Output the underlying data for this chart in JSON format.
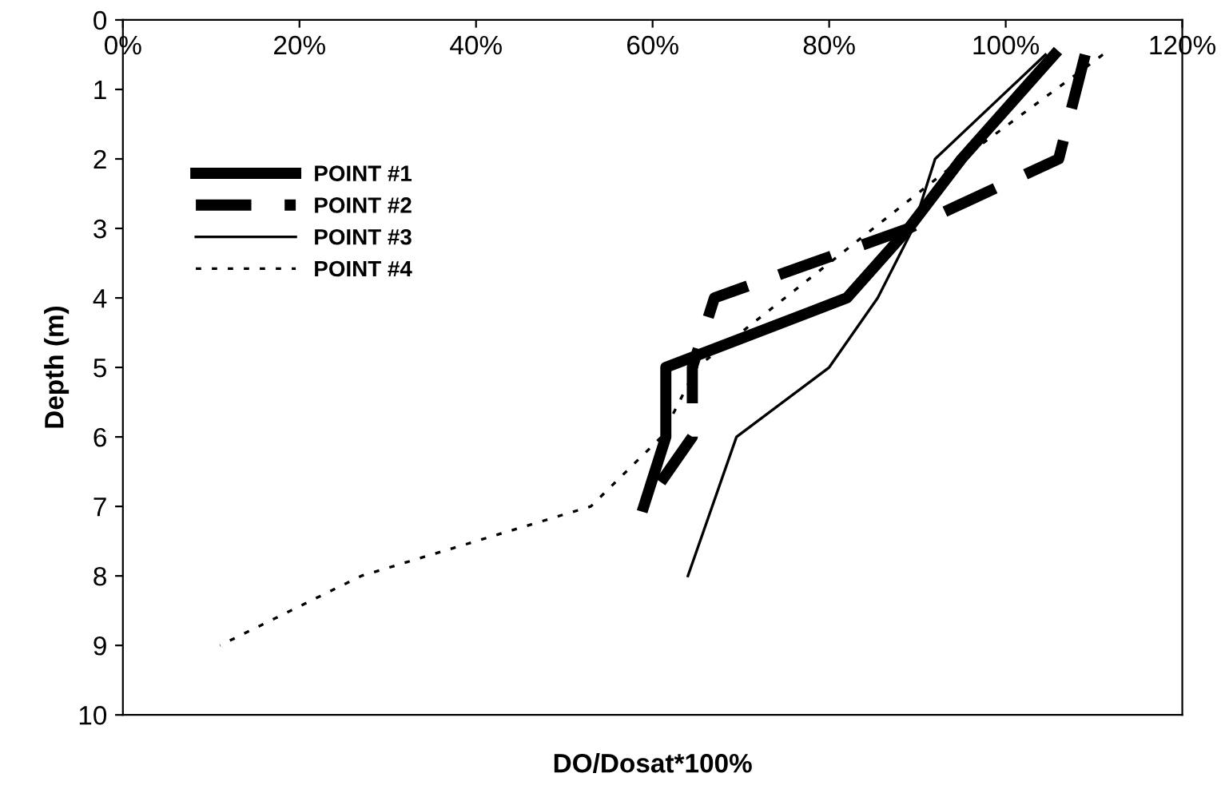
{
  "chart_data": {
    "type": "line",
    "xlabel": "DO/Dosat*100%",
    "ylabel": "Depth (m)",
    "series": [
      {
        "name": "POINT #1",
        "color": "#000000",
        "line_style": "solid",
        "x": [
          105.5,
          95,
          89,
          82,
          61.5,
          61.5,
          59
        ],
        "values": [
          0.5,
          2,
          3,
          4,
          5,
          6,
          7
        ]
      },
      {
        "name": "POINT #2",
        "color": "#000000",
        "line_style": "dashed",
        "x": [
          109,
          106,
          89,
          67,
          64.5,
          64.5,
          59
        ],
        "values": [
          0.5,
          2,
          3,
          4,
          5,
          6,
          7
        ]
      },
      {
        "name": "POINT #3",
        "color": "#000000",
        "line_style": "solid",
        "x": [
          104.5,
          92,
          89.5,
          85.5,
          80,
          69.5,
          64
        ],
        "values": [
          0.5,
          2,
          3,
          4,
          5,
          6,
          8
        ]
      },
      {
        "name": "POINT #4",
        "color": "#000000",
        "line_style": "dotted",
        "x": [
          111,
          95,
          85,
          75,
          65,
          61,
          53,
          27,
          11
        ],
        "values": [
          0.5,
          2,
          3,
          4,
          5,
          6,
          7,
          8,
          9
        ]
      }
    ],
    "xlim": [
      0,
      120
    ],
    "xticks": [
      {
        "value": 0,
        "label": "0%"
      },
      {
        "value": 20,
        "label": "20%"
      },
      {
        "value": 40,
        "label": "40%"
      },
      {
        "value": 60,
        "label": "60%"
      },
      {
        "value": 80,
        "label": "80%"
      },
      {
        "value": 100,
        "label": "100%"
      },
      {
        "value": 120,
        "label": "120%"
      }
    ],
    "ylim": [
      10,
      0
    ],
    "yticks": [
      0,
      1,
      2,
      3,
      4,
      5,
      6,
      7,
      8,
      9,
      10
    ],
    "grid": false,
    "legend": "top left",
    "marker": "none"
  }
}
